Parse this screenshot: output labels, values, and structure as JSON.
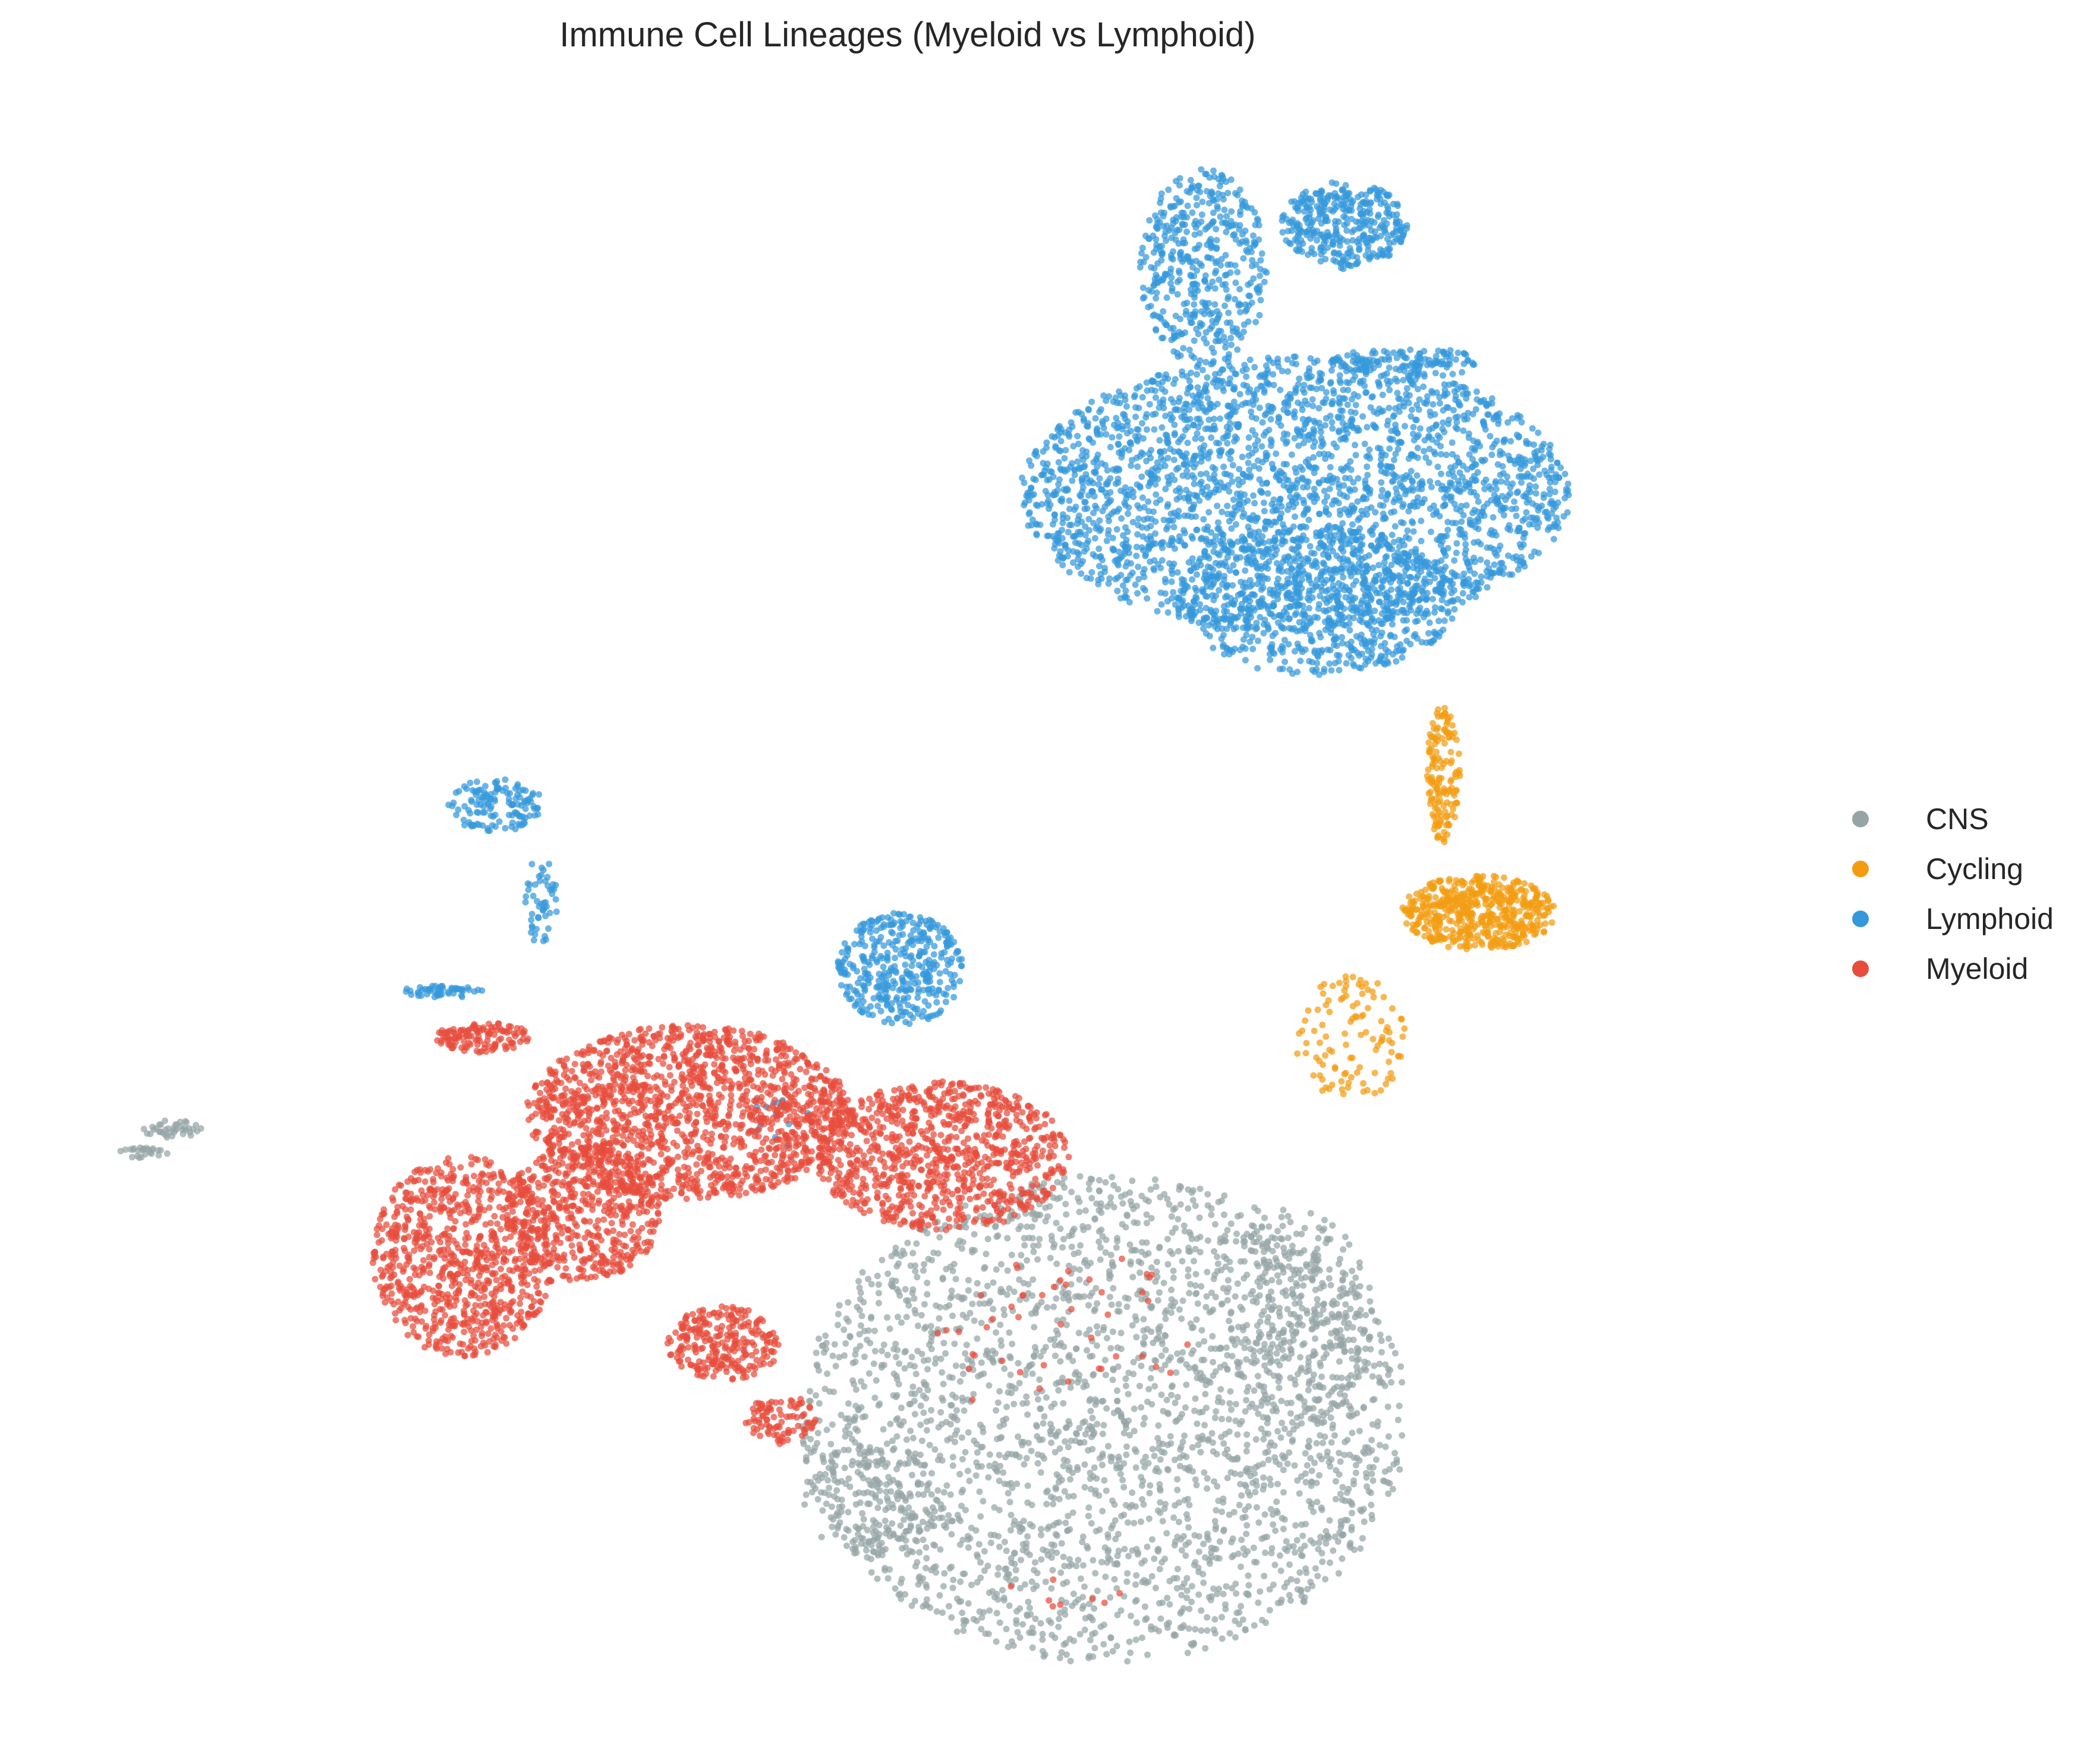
{
  "chart_data": {
    "type": "scatter",
    "title": "Immune Cell Lineages (Myeloid vs Lymphoid)",
    "xlabel": "",
    "ylabel": "",
    "axes_visible": false,
    "grid": false,
    "legend_position": "right",
    "series": [
      {
        "name": "CNS",
        "color": "#95a5a6",
        "regions": [
          {
            "type": "ellipse",
            "cx": 2.0,
            "cy": -3.4,
            "rx": 2.15,
            "ry": 1.95,
            "n": 2600
          },
          {
            "type": "ellipse",
            "cx": 3.35,
            "cy": -2.6,
            "rx": 0.55,
            "ry": 0.9,
            "n": 250
          },
          {
            "type": "ellipse",
            "cx": 0.35,
            "cy": -4.05,
            "rx": 0.5,
            "ry": 0.45,
            "n": 150
          },
          {
            "type": "ellipse",
            "cx": -4.62,
            "cy": -1.08,
            "rx": 0.22,
            "ry": 0.07,
            "n": 40
          },
          {
            "type": "ellipse",
            "cx": -4.82,
            "cy": -1.28,
            "rx": 0.18,
            "ry": 0.05,
            "n": 25
          }
        ]
      },
      {
        "name": "Cycling",
        "color": "#f39c12",
        "regions": [
          {
            "type": "ellipse",
            "cx": 4.65,
            "cy": 0.65,
            "rx": 0.55,
            "ry": 0.3,
            "n": 520
          },
          {
            "type": "ellipse",
            "cx": 4.4,
            "cy": 1.75,
            "rx": 0.12,
            "ry": 0.55,
            "n": 150
          },
          {
            "type": "ellipse",
            "cx": 3.75,
            "cy": -0.35,
            "rx": 0.4,
            "ry": 0.5,
            "n": 110
          }
        ]
      },
      {
        "name": "Lymphoid",
        "color": "#3498db",
        "regions": [
          {
            "type": "ellipse",
            "cx": 3.35,
            "cy": 4.0,
            "rx": 1.95,
            "ry": 1.1,
            "n": 2600
          },
          {
            "type": "ellipse",
            "cx": 3.5,
            "cy": 3.15,
            "rx": 1.0,
            "ry": 0.6,
            "n": 700
          },
          {
            "type": "ellipse",
            "cx": 2.7,
            "cy": 5.8,
            "rx": 0.45,
            "ry": 0.8,
            "n": 450
          },
          {
            "type": "ellipse",
            "cx": 3.7,
            "cy": 6.15,
            "rx": 0.45,
            "ry": 0.35,
            "n": 350
          },
          {
            "type": "ellipse",
            "cx": 4.15,
            "cy": 5.05,
            "rx": 0.55,
            "ry": 0.12,
            "n": 120
          },
          {
            "type": "ellipse",
            "cx": 0.55,
            "cy": 0.2,
            "rx": 0.45,
            "ry": 0.45,
            "n": 380
          },
          {
            "type": "ellipse",
            "cx": -2.32,
            "cy": 1.5,
            "rx": 0.35,
            "ry": 0.22,
            "n": 130
          },
          {
            "type": "ellipse",
            "cx": -2.0,
            "cy": 0.75,
            "rx": 0.12,
            "ry": 0.35,
            "n": 50
          },
          {
            "type": "ellipse",
            "cx": -2.68,
            "cy": 0.02,
            "rx": 0.3,
            "ry": 0.05,
            "n": 50
          },
          {
            "type": "ellipse",
            "cx": -0.3,
            "cy": -1.0,
            "rx": 0.25,
            "ry": 0.25,
            "n": 15
          }
        ]
      },
      {
        "name": "Myeloid",
        "color": "#e74c3c",
        "regions": [
          {
            "type": "ellipse",
            "cx": -0.95,
            "cy": -0.95,
            "rx": 1.15,
            "ry": 0.7,
            "n": 1500
          },
          {
            "type": "ellipse",
            "cx": 0.85,
            "cy": -1.3,
            "rx": 0.9,
            "ry": 0.6,
            "n": 900
          },
          {
            "type": "ellipse",
            "cx": -2.55,
            "cy": -2.1,
            "rx": 0.65,
            "ry": 0.8,
            "n": 850
          },
          {
            "type": "ellipse",
            "cx": -1.7,
            "cy": -1.75,
            "rx": 0.55,
            "ry": 0.55,
            "n": 500
          },
          {
            "type": "ellipse",
            "cx": -2.4,
            "cy": -0.35,
            "rx": 0.35,
            "ry": 0.12,
            "n": 120
          },
          {
            "type": "ellipse",
            "cx": -0.7,
            "cy": -2.8,
            "rx": 0.4,
            "ry": 0.3,
            "n": 250
          },
          {
            "type": "ellipse",
            "cx": -0.3,
            "cy": -3.4,
            "rx": 0.25,
            "ry": 0.2,
            "n": 90
          },
          {
            "type": "ellipse",
            "cx": 1.7,
            "cy": -2.8,
            "rx": 0.9,
            "ry": 0.8,
            "n": 45
          },
          {
            "type": "ellipse",
            "cx": 1.7,
            "cy": -4.8,
            "rx": 0.5,
            "ry": 0.12,
            "n": 8
          }
        ]
      }
    ],
    "xlim": [
      -5.2,
      6.6
    ],
    "ylim": [
      -5.6,
      7.0
    ]
  }
}
